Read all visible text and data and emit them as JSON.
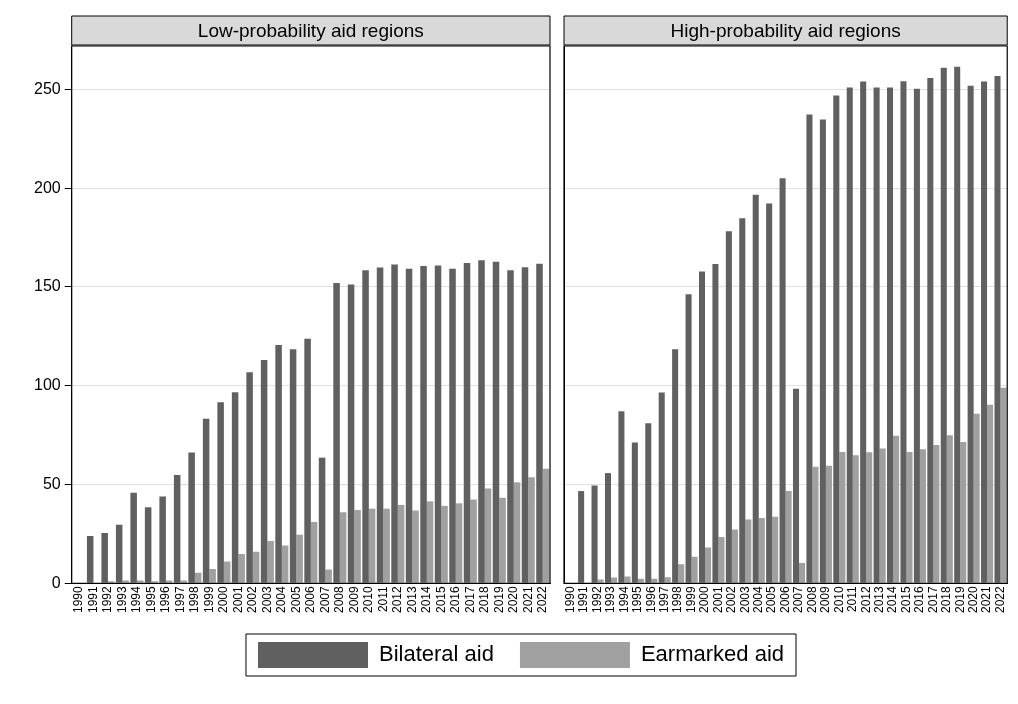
{
  "chart_data": [
    {
      "type": "bar",
      "title": "Low-probability aid regions",
      "categories": [
        "1990",
        "1991",
        "1992",
        "1993",
        "1994",
        "1995",
        "1996",
        "1997",
        "1998",
        "1999",
        "2000",
        "2001",
        "2002",
        "2003",
        "2004",
        "2005",
        "2006",
        "2007",
        "2008",
        "2009",
        "2010",
        "2011",
        "2012",
        "2013",
        "2014",
        "2015",
        "2016",
        "2017",
        "2018",
        "2019",
        "2020",
        "2021",
        "2022"
      ],
      "series": [
        {
          "name": "Bilateral aid",
          "color": "#606060",
          "values": [
            null,
            24,
            25.5,
            29.6,
            45.8,
            38.5,
            44,
            54.8,
            66.2,
            83.3,
            91.7,
            96.7,
            106.8,
            113,
            120.6,
            118.5,
            123.8,
            63.6,
            152,
            151.3,
            158.5,
            159.9,
            161.4,
            159.2,
            160.6,
            160.9,
            159.2,
            162.1,
            163.5,
            162.8,
            158.5,
            160,
            161.8
          ]
        },
        {
          "name": "Earmarked aid",
          "color": "#a0a0a0",
          "values": [
            null,
            0,
            1,
            1.4,
            1.4,
            1,
            1.4,
            1.4,
            5.4,
            7.3,
            11,
            14.8,
            16,
            21.4,
            19.2,
            24.6,
            31,
            7,
            36,
            37.1,
            37.8,
            37.8,
            39.7,
            36.8,
            41.5,
            39.2,
            40.5,
            42.4,
            48,
            43.3,
            51.1,
            53.7,
            58
          ]
        }
      ],
      "ylim": [
        0,
        272
      ],
      "yticks": [
        0,
        50,
        100,
        150,
        200,
        250
      ],
      "grid": "y",
      "legend": "bottom"
    },
    {
      "type": "bar",
      "title": "High-probability aid regions",
      "categories": [
        "1990",
        "1991",
        "1992",
        "1993",
        "1994",
        "1995",
        "1996",
        "1997",
        "1998",
        "1999",
        "2000",
        "2001",
        "2002",
        "2003",
        "2004",
        "2005",
        "2006",
        "2007",
        "2008",
        "2009",
        "2010",
        "2011",
        "2012",
        "2013",
        "2014",
        "2015",
        "2016",
        "2017",
        "2018",
        "2019",
        "2020",
        "2021",
        "2022"
      ],
      "series": [
        {
          "color": "#606060",
          "values": [
            null,
            46.7,
            49.5,
            55.8,
            87.1,
            71.3,
            81,
            96.6,
            118.5,
            146.3,
            157.8,
            161.7,
            178.2,
            184.8,
            196.7,
            192.3,
            205,
            98.5,
            237.3,
            234.8,
            247,
            251,
            254,
            251,
            251,
            254.2,
            250.4,
            255.8,
            261,
            261.5,
            251.9,
            254,
            256.8
          ]
        },
        {
          "color": "#a0a0a0",
          "values": [
            null,
            0,
            1.9,
            3,
            3.5,
            2.3,
            2.3,
            3.1,
            9.6,
            13.4,
            18.1,
            23.4,
            27.2,
            32.3,
            33,
            33.7,
            46.7,
            10.3,
            59,
            59.5,
            66.5,
            64.8,
            66.3,
            68.3,
            74.7,
            66.5,
            67.8,
            70,
            74.9,
            71.5,
            85.8,
            90.4,
            99
          ]
        }
      ],
      "ylim": [
        0,
        272
      ],
      "yticks": [
        0,
        50,
        100,
        150,
        200,
        250
      ],
      "grid": "y",
      "tick_labels": "x"
    }
  ]
}
